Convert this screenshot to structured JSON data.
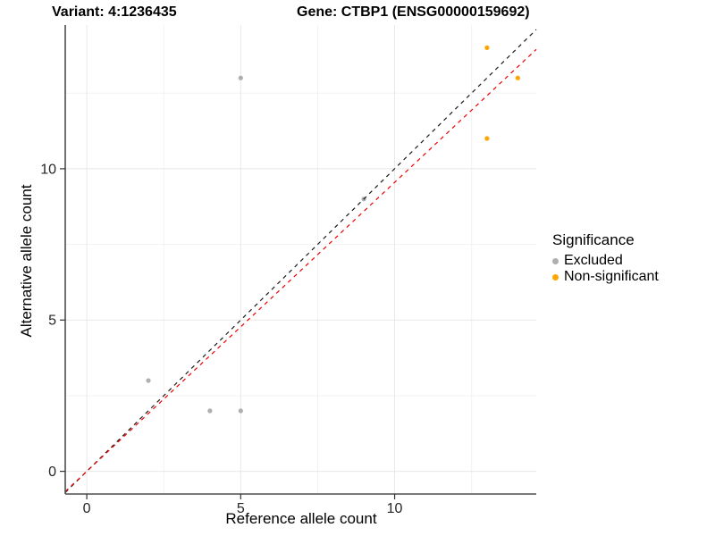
{
  "title": {
    "variant": "Variant: 4:1236435",
    "gene": "Gene: CTBP1 (ENSG00000159692)"
  },
  "x_axis": {
    "label": "Reference allele count",
    "tick_values": [
      0,
      5,
      10
    ],
    "tick_labels": [
      "0",
      "5",
      "10"
    ],
    "minor_values": [
      2.5,
      7.5,
      12.5
    ]
  },
  "y_axis": {
    "label": "Alternative allele count",
    "tick_values": [
      0,
      5,
      10
    ],
    "tick_labels": [
      "0",
      "5",
      "10"
    ],
    "minor_values": [
      2.5,
      7.5,
      12.5
    ]
  },
  "legend": {
    "title": "Significance",
    "items": [
      {
        "label": "Excluded",
        "color": "#AFAFAF"
      },
      {
        "label": "Non-significant",
        "color": "#FFA500"
      }
    ]
  },
  "colors": {
    "grid_major": "#E8E8E8",
    "grid_minor": "#F2F2F2",
    "axis_line": "#4D4D4D",
    "tick_mark": "#333333",
    "tick_text": "#262626",
    "excluded_point": "#AFAFAF",
    "non_significant_point": "#FFA500",
    "identity_line": "#1A1A1A",
    "regression_line": "#EE0000"
  },
  "chart_data": {
    "type": "scatter",
    "title": "Variant: 4:1236435 / Gene: CTBP1 (ENSG00000159692)",
    "xlabel": "Reference allele count",
    "ylabel": "Alternative allele count",
    "xlim": [
      -0.7,
      14.6
    ],
    "ylim": [
      -0.75,
      14.75
    ],
    "grid": true,
    "legend_position": "right",
    "series": [
      {
        "name": "Excluded",
        "color": "#AFAFAF",
        "points": [
          {
            "x": 2,
            "y": 3
          },
          {
            "x": 4,
            "y": 2
          },
          {
            "x": 5,
            "y": 2
          },
          {
            "x": 5,
            "y": 13
          },
          {
            "x": 9,
            "y": 9
          }
        ]
      },
      {
        "name": "Non-significant",
        "color": "#FFA500",
        "points": [
          {
            "x": 13,
            "y": 14
          },
          {
            "x": 14,
            "y": 13
          },
          {
            "x": 13,
            "y": 11
          }
        ]
      }
    ],
    "lines": [
      {
        "name": "identity",
        "slope": 1.0,
        "intercept": 0,
        "color": "#1A1A1A",
        "dash": true
      },
      {
        "name": "regression",
        "slope": 0.955,
        "intercept": 0,
        "color": "#EE0000",
        "dash": true
      }
    ]
  }
}
